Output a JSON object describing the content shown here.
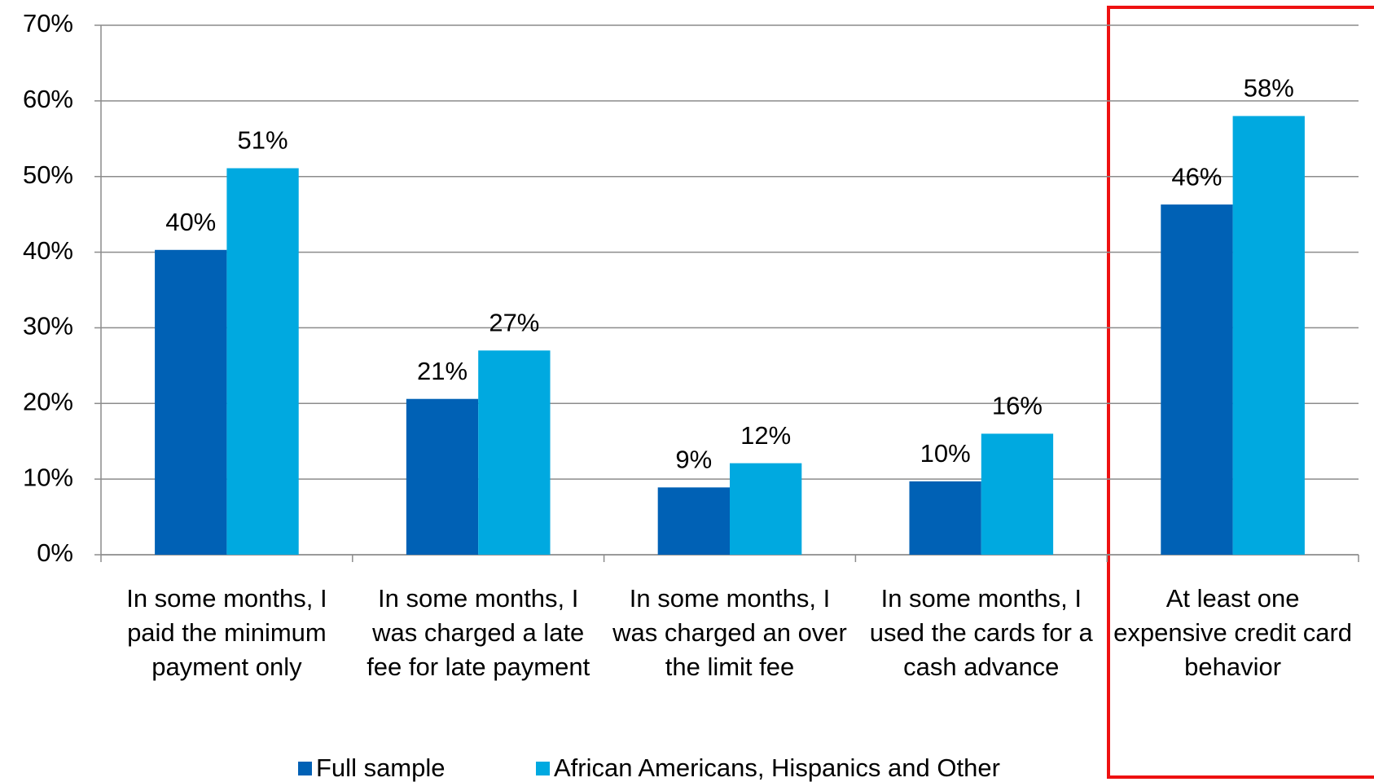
{
  "chart_data": {
    "type": "bar",
    "categories": [
      "In some months, I paid the minimum payment only",
      "In some months, I was charged a late fee for late payment",
      "In some months, I was charged an over the limit fee",
      "In some months, I used the cards for a cash advance",
      "At least one expensive credit card behavior"
    ],
    "series": [
      {
        "name": "Full sample",
        "color": "#0061b5",
        "values": [
          40.3,
          20.6,
          8.9,
          9.7,
          46.3
        ],
        "value_labels": [
          "40%",
          "21%",
          "9%",
          "10%",
          "46%"
        ]
      },
      {
        "name": "African Americans, Hispanics and Other",
        "color": "#00a9e0",
        "values": [
          51.1,
          27.0,
          12.1,
          16.0,
          58.0
        ],
        "value_labels": [
          "51%",
          "27%",
          "12%",
          "16%",
          "58%"
        ]
      }
    ],
    "ylim": [
      0,
      70
    ],
    "yticks": [
      {
        "value": 0,
        "label": "0%"
      },
      {
        "value": 10,
        "label": "10%"
      },
      {
        "value": 20,
        "label": "20%"
      },
      {
        "value": 30,
        "label": "30%"
      },
      {
        "value": 40,
        "label": "40%"
      },
      {
        "value": 50,
        "label": "50%"
      },
      {
        "value": 60,
        "label": "60%"
      },
      {
        "value": 70,
        "label": "70%"
      }
    ],
    "grid": true,
    "legend": "bottom"
  }
}
